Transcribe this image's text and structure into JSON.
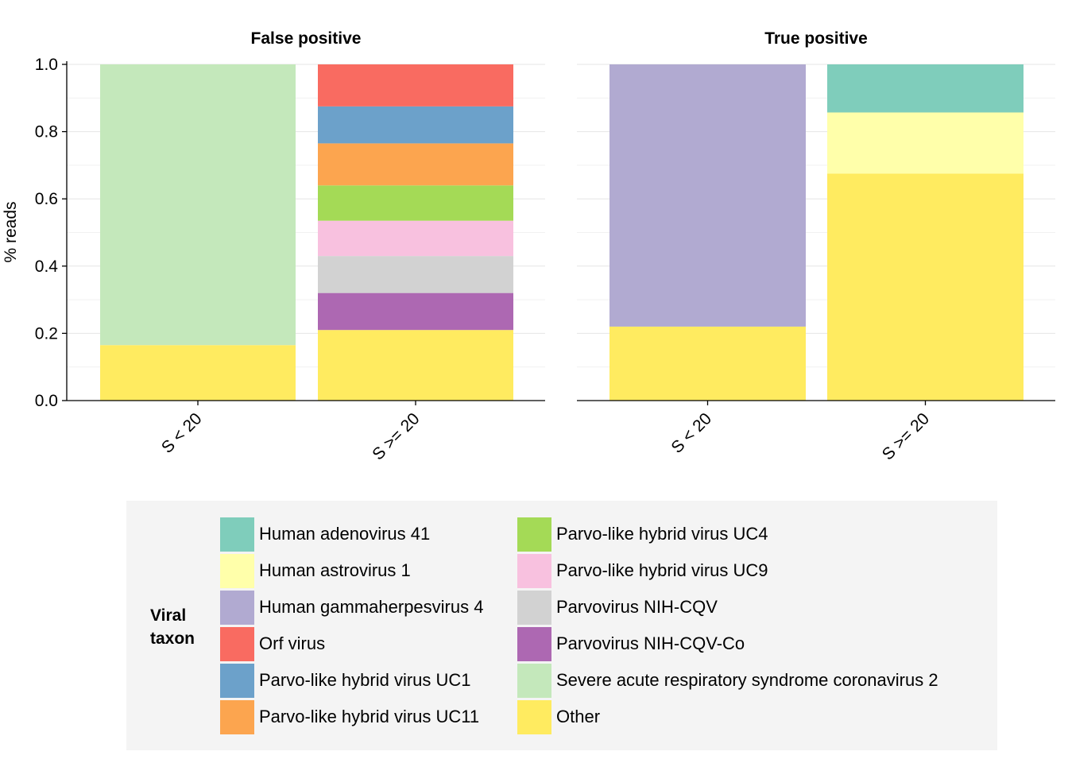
{
  "chart_data": {
    "type": "bar",
    "stacked": true,
    "ylabel": "% reads",
    "ylim": [
      0,
      1
    ],
    "yticks": [
      "0.0",
      "0.2",
      "0.4",
      "0.6",
      "0.8",
      "1.0"
    ],
    "categories": [
      "S < 20",
      "S >= 20"
    ],
    "grid": true,
    "legend": {
      "title": "Viral taxon",
      "placement": "bottom",
      "entries": [
        {
          "name": "Human adenovirus 41",
          "color": "#7fcdbb"
        },
        {
          "name": "Human astrovirus 1",
          "color": "#ffffaa"
        },
        {
          "name": "Human gammaherpesvirus 4",
          "color": "#b1aad1"
        },
        {
          "name": "Orf virus",
          "color": "#f96b61"
        },
        {
          "name": "Parvo-like hybrid virus UC1",
          "color": "#6ca1ca"
        },
        {
          "name": "Parvo-like hybrid virus UC11",
          "color": "#fca54f"
        },
        {
          "name": "Parvo-like hybrid virus UC4",
          "color": "#a4da56"
        },
        {
          "name": "Parvo-like hybrid virus UC9",
          "color": "#f8c1df"
        },
        {
          "name": "Parvovirus NIH-CQV",
          "color": "#d2d2d2"
        },
        {
          "name": "Parvovirus NIH-CQV-Co",
          "color": "#ad68b2"
        },
        {
          "name": "Severe acute respiratory syndrome coronavirus 2",
          "color": "#c4e8bb"
        },
        {
          "name": "Other",
          "color": "#ffeb60"
        }
      ]
    },
    "panels": [
      {
        "title": "False positive",
        "bars": [
          {
            "category": "S < 20",
            "segments": [
              {
                "name": "Other",
                "value": 0.165
              },
              {
                "name": "Severe acute respiratory syndrome coronavirus 2",
                "value": 0.835
              }
            ]
          },
          {
            "category": "S >= 20",
            "segments": [
              {
                "name": "Other",
                "value": 0.21
              },
              {
                "name": "Parvovirus NIH-CQV-Co",
                "value": 0.11
              },
              {
                "name": "Parvovirus NIH-CQV",
                "value": 0.11
              },
              {
                "name": "Parvo-like hybrid virus UC9",
                "value": 0.105
              },
              {
                "name": "Parvo-like hybrid virus UC4",
                "value": 0.105
              },
              {
                "name": "Parvo-like hybrid virus UC11",
                "value": 0.125
              },
              {
                "name": "Parvo-like hybrid virus UC1",
                "value": 0.11
              },
              {
                "name": "Orf virus",
                "value": 0.125
              }
            ]
          }
        ]
      },
      {
        "title": "True positive",
        "bars": [
          {
            "category": "S < 20",
            "segments": [
              {
                "name": "Other",
                "value": 0.22
              },
              {
                "name": "Human gammaherpesvirus 4",
                "value": 0.78
              }
            ]
          },
          {
            "category": "S >= 20",
            "segments": [
              {
                "name": "Other",
                "value": 0.675
              },
              {
                "name": "Human astrovirus 1",
                "value": 0.182
              },
              {
                "name": "Human adenovirus 41",
                "value": 0.143
              }
            ]
          }
        ]
      }
    ]
  }
}
